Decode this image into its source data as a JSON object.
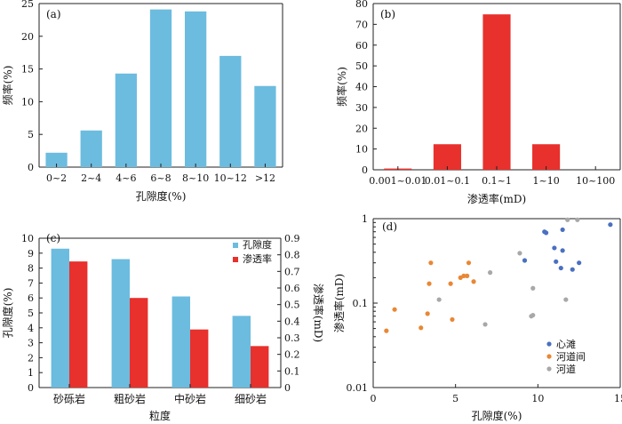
{
  "chart_data": [
    {
      "panel": "(a)",
      "type": "bar",
      "xlabel": "孔隙度(%)",
      "ylabel": "频率(%)",
      "categories": [
        "0~2",
        "2~4",
        "4~6",
        "6~8",
        "8~10",
        "10~12",
        ">12"
      ],
      "values": [
        2.2,
        5.6,
        14.3,
        24.1,
        23.8,
        17.0,
        12.4
      ],
      "ylim": [
        0,
        25
      ],
      "yticks": [
        0,
        5,
        10,
        15,
        20,
        25
      ],
      "colors": {
        "bar": "#6cbcdf"
      },
      "grid": false
    },
    {
      "panel": "(b)",
      "type": "bar",
      "xlabel": "渗透率(mD)",
      "ylabel": "频率(%)",
      "categories": [
        "0.001~0.01",
        "0.01~0.1",
        "0.1~1",
        "1~10",
        "10~100"
      ],
      "values": [
        0.6,
        12.3,
        74.8,
        12.3,
        0
      ],
      "ylim": [
        0,
        80
      ],
      "yticks": [
        0,
        10,
        20,
        30,
        40,
        50,
        60,
        70,
        80
      ],
      "colors": {
        "bar": "#e8302c"
      },
      "grid": false
    },
    {
      "panel": "(c)",
      "type": "bar",
      "xlabel": "粒度",
      "ylabel": "孔隙度(%)",
      "y2label": "渗透率(mD)",
      "categories": [
        "砂砾岩",
        "粗砂岩",
        "中砂岩",
        "细砂岩"
      ],
      "series": [
        {
          "name": "孔隙度",
          "axis": "left",
          "color": "#6cbcdf",
          "values": [
            9.3,
            8.6,
            6.1,
            4.8
          ]
        },
        {
          "name": "渗透率",
          "axis": "right",
          "color": "#e8302c",
          "values": [
            0.76,
            0.54,
            0.35,
            0.25
          ]
        }
      ],
      "ylim": [
        0,
        10
      ],
      "yticks": [
        0,
        1,
        2,
        3,
        4,
        5,
        6,
        7,
        8,
        9,
        10
      ],
      "y2lim": [
        0,
        0.9
      ],
      "y2ticks": [
        "0",
        "0.1",
        "0.2",
        "0.3",
        "0.4",
        "0.5",
        "0.6",
        "0.7",
        "0.8",
        "0.9"
      ],
      "legend": "top-right",
      "grid": false
    },
    {
      "panel": "(d)",
      "type": "scatter",
      "xlabel": "孔隙度(%)",
      "ylabel": "渗透率(mD)",
      "xlim": [
        0,
        15
      ],
      "xticks": [
        0,
        5,
        10,
        15
      ],
      "ylim": [
        0.01,
        1
      ],
      "ylog": true,
      "yticks": [
        {
          "v": 0.01,
          "label": "0.01"
        },
        {
          "v": 0.1,
          "label": "0.1"
        },
        {
          "v": 1,
          "label": "1"
        }
      ],
      "legend": "bottom-right",
      "grid": false,
      "series": [
        {
          "name": "心滩",
          "color": "#4a70c0",
          "points": [
            [
              14.4,
              0.85
            ],
            [
              11.5,
              0.74
            ],
            [
              10.4,
              0.7
            ],
            [
              10.5,
              0.68
            ],
            [
              11.0,
              0.45
            ],
            [
              11.5,
              0.42
            ],
            [
              9.2,
              0.32
            ],
            [
              11.1,
              0.31
            ],
            [
              12.5,
              0.3
            ],
            [
              11.4,
              0.26
            ],
            [
              12.1,
              0.25
            ]
          ]
        },
        {
          "name": "河道间",
          "color": "#e98735",
          "points": [
            [
              3.5,
              0.3
            ],
            [
              5.8,
              0.3
            ],
            [
              5.5,
              0.21
            ],
            [
              5.7,
              0.21
            ],
            [
              5.3,
              0.2
            ],
            [
              6.1,
              0.18
            ],
            [
              4.7,
              0.17
            ],
            [
              3.4,
              0.17
            ],
            [
              1.3,
              0.084
            ],
            [
              3.3,
              0.075
            ],
            [
              4.8,
              0.064
            ],
            [
              2.9,
              0.051
            ],
            [
              0.8,
              0.047
            ]
          ]
        },
        {
          "name": "河道",
          "color": "#a8a8a8",
          "points": [
            [
              11.8,
              0.97
            ],
            [
              12.4,
              0.97
            ],
            [
              8.9,
              0.39
            ],
            [
              7.1,
              0.23
            ],
            [
              9.7,
              0.15
            ],
            [
              4.0,
              0.11
            ],
            [
              11.7,
              0.11
            ],
            [
              9.7,
              0.072
            ],
            [
              9.6,
              0.07
            ],
            [
              6.8,
              0.056
            ]
          ]
        }
      ]
    }
  ]
}
